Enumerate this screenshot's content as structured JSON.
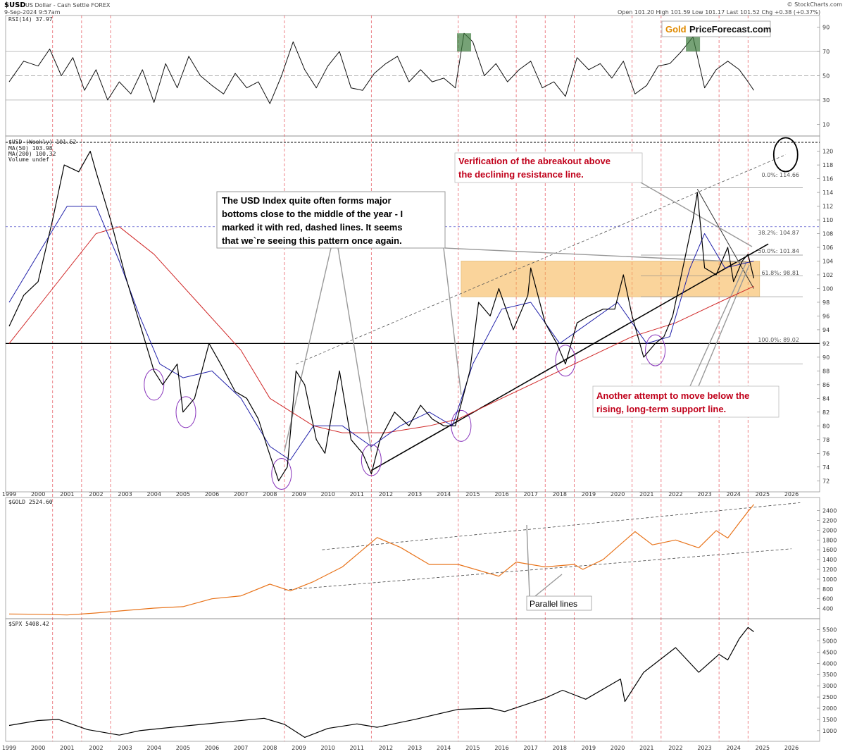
{
  "header": {
    "symbol": "$USD",
    "description": "US Dollar - Cash Settle FOREX",
    "date": "9-Sep-2024 9:57am",
    "quote": "Open 101.20  High 101.59  Low 101.17  Last 101.52  Chg +0.38 (+0.37%)",
    "credit": "© StockCharts.com",
    "logo_gold": "Gold",
    "logo_rest": "PriceForecast.com"
  },
  "panels": {
    "rsi_label": "RSI(14) 37.97",
    "usd_label": "$USD (Weekly) 101.52",
    "ma50_label": "MA(50) 103.98",
    "ma200_label": "MA(200) 100.32",
    "volume_label": "Volume undef",
    "gold_label": "$GOLD 2524.60",
    "spx_label": "$SPX 5408.42"
  },
  "annotations": {
    "seasonal_note": [
      "The USD Index quite often forms major",
      "bottoms close to the middle of the year - I",
      "marked it with red, dashed lines. It seems",
      "that we`re seeing this pattern once again."
    ],
    "verification_note": [
      "Verification of the abreakout above",
      "the declining resistance line."
    ],
    "support_note": [
      "Another attempt to move below the",
      "rising, long-term support line."
    ],
    "parallel_note": "Parallel lines"
  },
  "fib_labels": [
    "0.0%: 114.66",
    "38.2%: 104.87",
    "50.0%: 101.84",
    "61.8%: 98.81",
    "100.0%: 89.02"
  ],
  "chart_data": {
    "type": "line",
    "x_axis_years": [
      "1999",
      "2000",
      "2001",
      "2002",
      "2003",
      "2004",
      "2005",
      "2006",
      "2007",
      "2008",
      "2009",
      "2010",
      "2011",
      "2012",
      "2013",
      "2014",
      "2015",
      "2016",
      "2017",
      "2018",
      "2019",
      "2020",
      "2021",
      "2022",
      "2023",
      "2024",
      "2025",
      "2026"
    ],
    "mid_year_markers": [
      2000.5,
      2001.5,
      2002.5,
      2008.5,
      2011.5,
      2014.5,
      2016.5,
      2017.5,
      2018.5,
      2020.5,
      2021.5,
      2023.5,
      2024.5
    ],
    "rsi": {
      "name": "RSI(14)",
      "y_ticks": [
        10,
        30,
        50,
        70,
        90
      ],
      "reference_lines": [
        30,
        50,
        70
      ],
      "points": [
        [
          1999.0,
          45
        ],
        [
          1999.5,
          62
        ],
        [
          2000.0,
          58
        ],
        [
          2000.4,
          72
        ],
        [
          2000.8,
          50
        ],
        [
          2001.2,
          65
        ],
        [
          2001.6,
          38
        ],
        [
          2002.0,
          55
        ],
        [
          2002.4,
          30
        ],
        [
          2002.8,
          45
        ],
        [
          2003.2,
          35
        ],
        [
          2003.6,
          55
        ],
        [
          2004.0,
          28
        ],
        [
          2004.4,
          60
        ],
        [
          2004.8,
          40
        ],
        [
          2005.2,
          66
        ],
        [
          2005.6,
          50
        ],
        [
          2006.0,
          42
        ],
        [
          2006.4,
          35
        ],
        [
          2006.8,
          52
        ],
        [
          2007.2,
          40
        ],
        [
          2007.6,
          45
        ],
        [
          2008.0,
          27
        ],
        [
          2008.4,
          50
        ],
        [
          2008.8,
          78
        ],
        [
          2009.2,
          55
        ],
        [
          2009.6,
          40
        ],
        [
          2010.0,
          58
        ],
        [
          2010.4,
          70
        ],
        [
          2010.8,
          40
        ],
        [
          2011.2,
          38
        ],
        [
          2011.6,
          52
        ],
        [
          2012.0,
          60
        ],
        [
          2012.4,
          66
        ],
        [
          2012.8,
          45
        ],
        [
          2013.2,
          55
        ],
        [
          2013.6,
          45
        ],
        [
          2014.0,
          48
        ],
        [
          2014.4,
          40
        ],
        [
          2014.7,
          85
        ],
        [
          2015.0,
          78
        ],
        [
          2015.4,
          50
        ],
        [
          2015.8,
          60
        ],
        [
          2016.2,
          45
        ],
        [
          2016.6,
          55
        ],
        [
          2017.0,
          62
        ],
        [
          2017.4,
          40
        ],
        [
          2017.8,
          45
        ],
        [
          2018.2,
          33
        ],
        [
          2018.6,
          65
        ],
        [
          2019.0,
          55
        ],
        [
          2019.4,
          60
        ],
        [
          2019.8,
          48
        ],
        [
          2020.2,
          62
        ],
        [
          2020.6,
          35
        ],
        [
          2021.0,
          42
        ],
        [
          2021.4,
          58
        ],
        [
          2021.8,
          60
        ],
        [
          2022.2,
          70
        ],
        [
          2022.6,
          82
        ],
        [
          2023.0,
          40
        ],
        [
          2023.4,
          55
        ],
        [
          2023.8,
          62
        ],
        [
          2024.2,
          55
        ],
        [
          2024.5,
          45
        ],
        [
          2024.7,
          38
        ]
      ]
    },
    "usd_index": {
      "name": "$USD (Weekly)",
      "y_ticks": [
        72,
        74,
        76,
        78,
        80,
        82,
        84,
        86,
        88,
        90,
        92,
        94,
        96,
        98,
        100,
        102,
        104,
        106,
        108,
        110,
        112,
        114,
        116,
        118,
        120
      ],
      "ylim": [
        71,
        121.5
      ],
      "points": [
        [
          1999.0,
          94.5
        ],
        [
          1999.5,
          99
        ],
        [
          2000.0,
          101
        ],
        [
          2000.5,
          110
        ],
        [
          2000.9,
          118
        ],
        [
          2001.4,
          117
        ],
        [
          2001.8,
          120
        ],
        [
          2002.0,
          117
        ],
        [
          2002.5,
          110
        ],
        [
          2003.0,
          102
        ],
        [
          2003.5,
          95
        ],
        [
          2004.0,
          88
        ],
        [
          2004.3,
          86
        ],
        [
          2004.8,
          89
        ],
        [
          2005.0,
          82
        ],
        [
          2005.4,
          84
        ],
        [
          2005.9,
          92
        ],
        [
          2006.3,
          89
        ],
        [
          2006.8,
          85
        ],
        [
          2007.2,
          84
        ],
        [
          2007.6,
          81
        ],
        [
          2007.9,
          77
        ],
        [
          2008.3,
          72
        ],
        [
          2008.6,
          74
        ],
        [
          2008.9,
          88
        ],
        [
          2009.2,
          86
        ],
        [
          2009.6,
          78
        ],
        [
          2009.9,
          76
        ],
        [
          2010.4,
          88
        ],
        [
          2010.8,
          78
        ],
        [
          2011.2,
          76
        ],
        [
          2011.5,
          73
        ],
        [
          2011.8,
          78
        ],
        [
          2012.3,
          82
        ],
        [
          2012.8,
          80
        ],
        [
          2013.2,
          83
        ],
        [
          2013.6,
          81
        ],
        [
          2014.0,
          80
        ],
        [
          2014.4,
          80
        ],
        [
          2014.9,
          88
        ],
        [
          2015.2,
          98
        ],
        [
          2015.6,
          96
        ],
        [
          2015.9,
          100
        ],
        [
          2016.4,
          94
        ],
        [
          2016.9,
          99
        ],
        [
          2017.0,
          103
        ],
        [
          2017.5,
          95
        ],
        [
          2017.9,
          92
        ],
        [
          2018.2,
          89
        ],
        [
          2018.6,
          95
        ],
        [
          2019.0,
          96
        ],
        [
          2019.5,
          97
        ],
        [
          2019.9,
          97
        ],
        [
          2020.2,
          102
        ],
        [
          2020.5,
          96
        ],
        [
          2020.9,
          90
        ],
        [
          2021.3,
          92
        ],
        [
          2021.6,
          93
        ],
        [
          2021.9,
          96
        ],
        [
          2022.3,
          104
        ],
        [
          2022.6,
          110
        ],
        [
          2022.75,
          114
        ],
        [
          2023.0,
          103
        ],
        [
          2023.4,
          102
        ],
        [
          2023.8,
          106
        ],
        [
          2024.0,
          101
        ],
        [
          2024.3,
          104
        ],
        [
          2024.5,
          105
        ],
        [
          2024.7,
          101.5
        ]
      ],
      "ma50": [
        [
          1999.0,
          98
        ],
        [
          2000.0,
          105
        ],
        [
          2001.0,
          112
        ],
        [
          2002.0,
          112
        ],
        [
          2002.8,
          104
        ],
        [
          2003.5,
          96
        ],
        [
          2004.2,
          89
        ],
        [
          2005.0,
          87
        ],
        [
          2006.0,
          88
        ],
        [
          2007.0,
          84
        ],
        [
          2008.0,
          77
        ],
        [
          2008.7,
          75
        ],
        [
          2009.5,
          80
        ],
        [
          2010.5,
          80
        ],
        [
          2011.5,
          77
        ],
        [
          2012.5,
          80
        ],
        [
          2013.5,
          82
        ],
        [
          2014.3,
          80
        ],
        [
          2015.0,
          89
        ],
        [
          2016.0,
          97
        ],
        [
          2017.0,
          98
        ],
        [
          2018.0,
          92
        ],
        [
          2019.0,
          95
        ],
        [
          2020.0,
          98
        ],
        [
          2021.0,
          92
        ],
        [
          2021.8,
          93
        ],
        [
          2022.5,
          103
        ],
        [
          2023.0,
          108
        ],
        [
          2023.7,
          103
        ],
        [
          2024.7,
          104
        ]
      ],
      "ma200": [
        [
          1999.0,
          92
        ],
        [
          2000.5,
          100
        ],
        [
          2002.0,
          108
        ],
        [
          2002.8,
          109
        ],
        [
          2004.0,
          105
        ],
        [
          2005.5,
          98
        ],
        [
          2007.0,
          91
        ],
        [
          2008.0,
          84
        ],
        [
          2009.5,
          80
        ],
        [
          2010.5,
          79
        ],
        [
          2012.0,
          79
        ],
        [
          2013.5,
          80
        ],
        [
          2014.5,
          81
        ],
        [
          2016.0,
          84
        ],
        [
          2017.5,
          87
        ],
        [
          2019.0,
          90
        ],
        [
          2020.5,
          93
        ],
        [
          2022.0,
          95
        ],
        [
          2023.5,
          98
        ],
        [
          2024.7,
          100.32
        ]
      ],
      "resistance_box": [
        98.8,
        104
      ],
      "horizontal_support": 92,
      "dashed_level": 109,
      "fib_levels": [
        114.66,
        104.87,
        101.84,
        98.81,
        89.02
      ]
    },
    "gold": {
      "name": "$GOLD",
      "y_ticks": [
        400,
        600,
        800,
        1000,
        1200,
        1400,
        1600,
        1800,
        2000,
        2200,
        2400
      ],
      "ylim": [
        280,
        2580
      ],
      "points": [
        [
          1999.0,
          290
        ],
        [
          2000.0,
          285
        ],
        [
          2001.0,
          270
        ],
        [
          2002.0,
          310
        ],
        [
          2003.0,
          360
        ],
        [
          2004.0,
          410
        ],
        [
          2005.0,
          440
        ],
        [
          2006.0,
          600
        ],
        [
          2007.0,
          660
        ],
        [
          2008.0,
          900
        ],
        [
          2008.7,
          760
        ],
        [
          2009.5,
          950
        ],
        [
          2010.5,
          1250
        ],
        [
          2011.7,
          1850
        ],
        [
          2012.5,
          1650
        ],
        [
          2013.5,
          1300
        ],
        [
          2014.5,
          1300
        ],
        [
          2015.9,
          1060
        ],
        [
          2016.5,
          1350
        ],
        [
          2017.5,
          1250
        ],
        [
          2018.5,
          1300
        ],
        [
          2018.8,
          1200
        ],
        [
          2019.5,
          1400
        ],
        [
          2020.6,
          1970
        ],
        [
          2021.2,
          1700
        ],
        [
          2022.0,
          1800
        ],
        [
          2022.8,
          1640
        ],
        [
          2023.4,
          1990
        ],
        [
          2023.8,
          1840
        ],
        [
          2024.2,
          2150
        ],
        [
          2024.5,
          2380
        ],
        [
          2024.7,
          2524.6
        ]
      ]
    },
    "spx": {
      "name": "$SPX",
      "y_ticks": [
        1000,
        1500,
        2000,
        2500,
        3000,
        3500,
        4000,
        4500,
        5000,
        5500
      ],
      "ylim": [
        650,
        5800
      ],
      "points": [
        [
          1999.0,
          1230
        ],
        [
          2000.0,
          1450
        ],
        [
          2000.7,
          1500
        ],
        [
          2001.7,
          1050
        ],
        [
          2002.8,
          800
        ],
        [
          2003.5,
          1000
        ],
        [
          2005.0,
          1200
        ],
        [
          2007.8,
          1550
        ],
        [
          2008.5,
          1280
        ],
        [
          2009.2,
          700
        ],
        [
          2010.0,
          1100
        ],
        [
          2011.0,
          1300
        ],
        [
          2011.7,
          1150
        ],
        [
          2013.0,
          1500
        ],
        [
          2014.5,
          1950
        ],
        [
          2015.6,
          2000
        ],
        [
          2016.1,
          1850
        ],
        [
          2017.5,
          2450
        ],
        [
          2018.1,
          2800
        ],
        [
          2018.9,
          2400
        ],
        [
          2020.1,
          3300
        ],
        [
          2020.25,
          2300
        ],
        [
          2020.9,
          3600
        ],
        [
          2022.0,
          4700
        ],
        [
          2022.8,
          3600
        ],
        [
          2023.5,
          4400
        ],
        [
          2023.8,
          4150
        ],
        [
          2024.2,
          5100
        ],
        [
          2024.5,
          5600
        ],
        [
          2024.7,
          5408
        ]
      ]
    }
  }
}
